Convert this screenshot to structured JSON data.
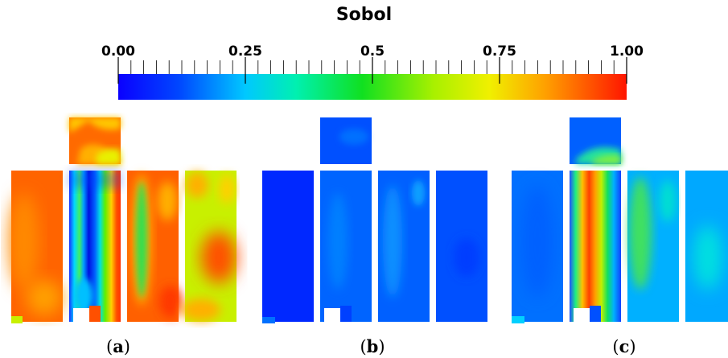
{
  "title": "Sobol",
  "colorbar": {
    "ticks": [
      "0.00",
      "0.25",
      "0.5",
      "0.75",
      "1.00"
    ],
    "min": 0,
    "max": 1,
    "colormap": "rainbow"
  },
  "panels": [
    {
      "letter": "a",
      "caption_open": "(",
      "caption_close": ")"
    },
    {
      "letter": "b",
      "caption_open": "(",
      "caption_close": ")"
    },
    {
      "letter": "c",
      "caption_open": "(",
      "caption_close": ")"
    }
  ]
}
